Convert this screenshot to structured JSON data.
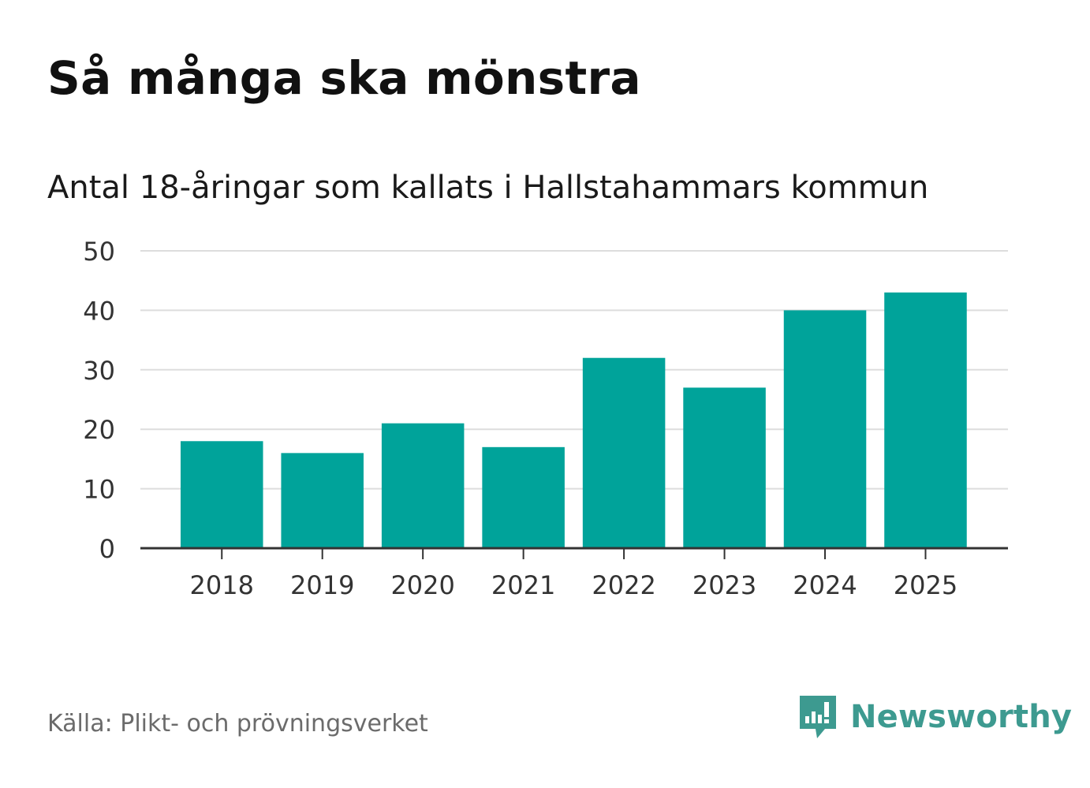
{
  "chart_data": {
    "type": "bar",
    "title": "Så många ska mönstra",
    "subtitle": "Antal 18-åringar som kallats i Hallstahammars kommun",
    "xlabel": "",
    "ylabel": "",
    "categories": [
      "2018",
      "2019",
      "2020",
      "2021",
      "2022",
      "2023",
      "2024",
      "2025"
    ],
    "values": [
      18,
      16,
      21,
      17,
      32,
      27,
      40,
      43
    ],
    "ylim": [
      0,
      50
    ],
    "yticks": [
      "0",
      "10",
      "20",
      "30",
      "40",
      "50"
    ],
    "grid": true,
    "bar_color": "#00a39a"
  },
  "footer": {
    "source": "Källa: Plikt- och prövningsverket",
    "brand_name": "Newsworthy",
    "brand_icon": "newsworthy-logo-icon"
  },
  "colors": {
    "bar": "#00a39a",
    "grid": "#dddddd",
    "axis": "#333333",
    "brand": "#3d9a90",
    "source_text": "#6b6b6b"
  }
}
